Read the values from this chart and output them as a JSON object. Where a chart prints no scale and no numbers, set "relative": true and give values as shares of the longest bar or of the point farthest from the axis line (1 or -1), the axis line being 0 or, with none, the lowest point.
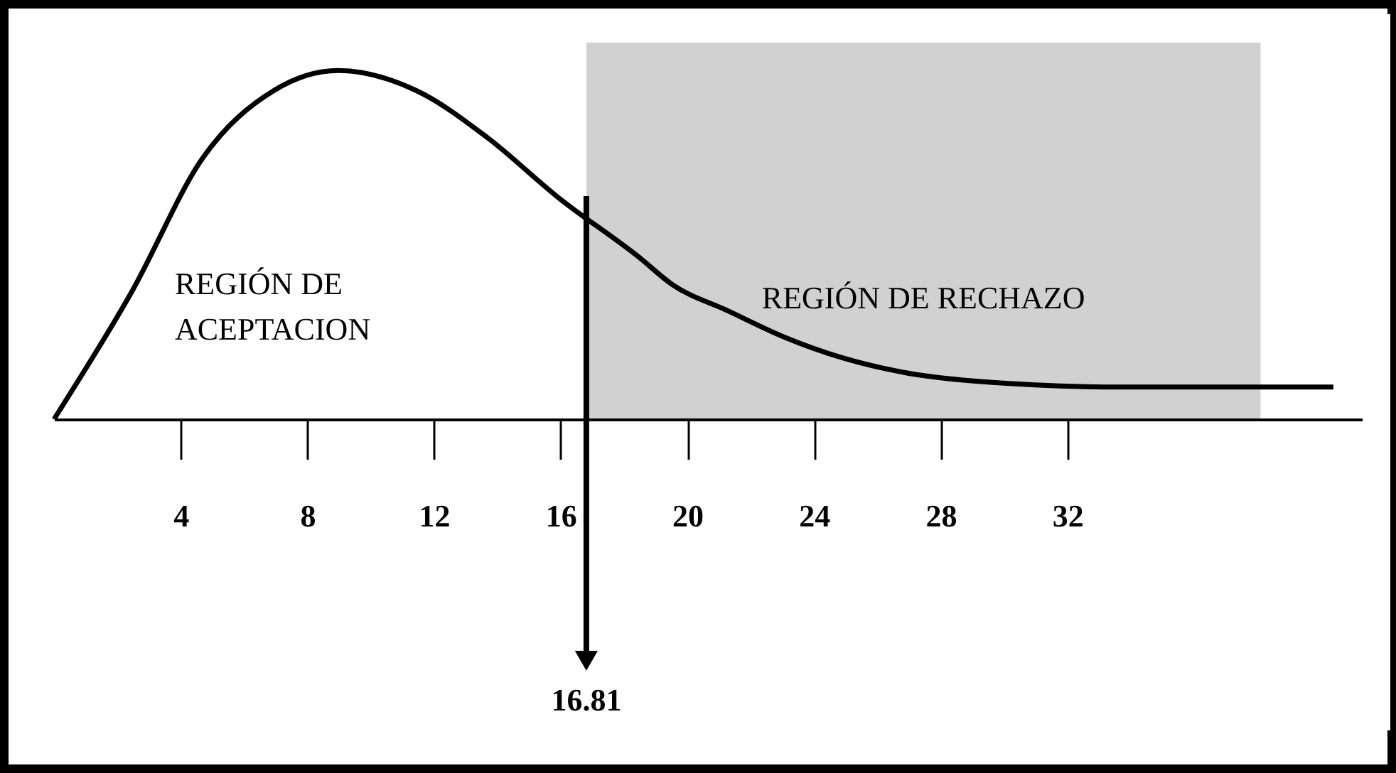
{
  "chart_data": {
    "type": "line",
    "relative": true,
    "x": [
      0,
      2.47,
      4.71,
      6.95,
      8.97,
      11.43,
      13.68,
      15.92,
      18.48,
      19.51,
      21.3,
      23.1,
      24.9,
      27.1,
      29.4,
      33.8,
      38.1,
      40.4
    ],
    "series": [
      {
        "color": "#000000",
        "values": [
          0,
          0.368,
          0.751,
          0.943,
          1,
          0.943,
          0.808,
          0.636,
          0.464,
          0.387,
          0.31,
          0.234,
          0.176,
          0.13,
          0.107,
          0.092,
          0.092,
          0.092
        ]
      }
    ],
    "xlim": [
      0,
      41.3
    ],
    "xticks": [
      4,
      8,
      12,
      16,
      20,
      24,
      28,
      32
    ],
    "ref_lines": [
      {
        "axis": "x",
        "value": 16.81,
        "label": "16.81",
        "color": "#000000"
      }
    ],
    "bands": [
      {
        "axis": "x",
        "from": 16.81,
        "to": 38.1,
        "label": "REGIÓN DE RECHAZO",
        "color": "#000000"
      }
    ],
    "annotations": [
      "REGIÓN DE\nACEPTACION"
    ],
    "marker": "none",
    "line_style": "solid"
  }
}
